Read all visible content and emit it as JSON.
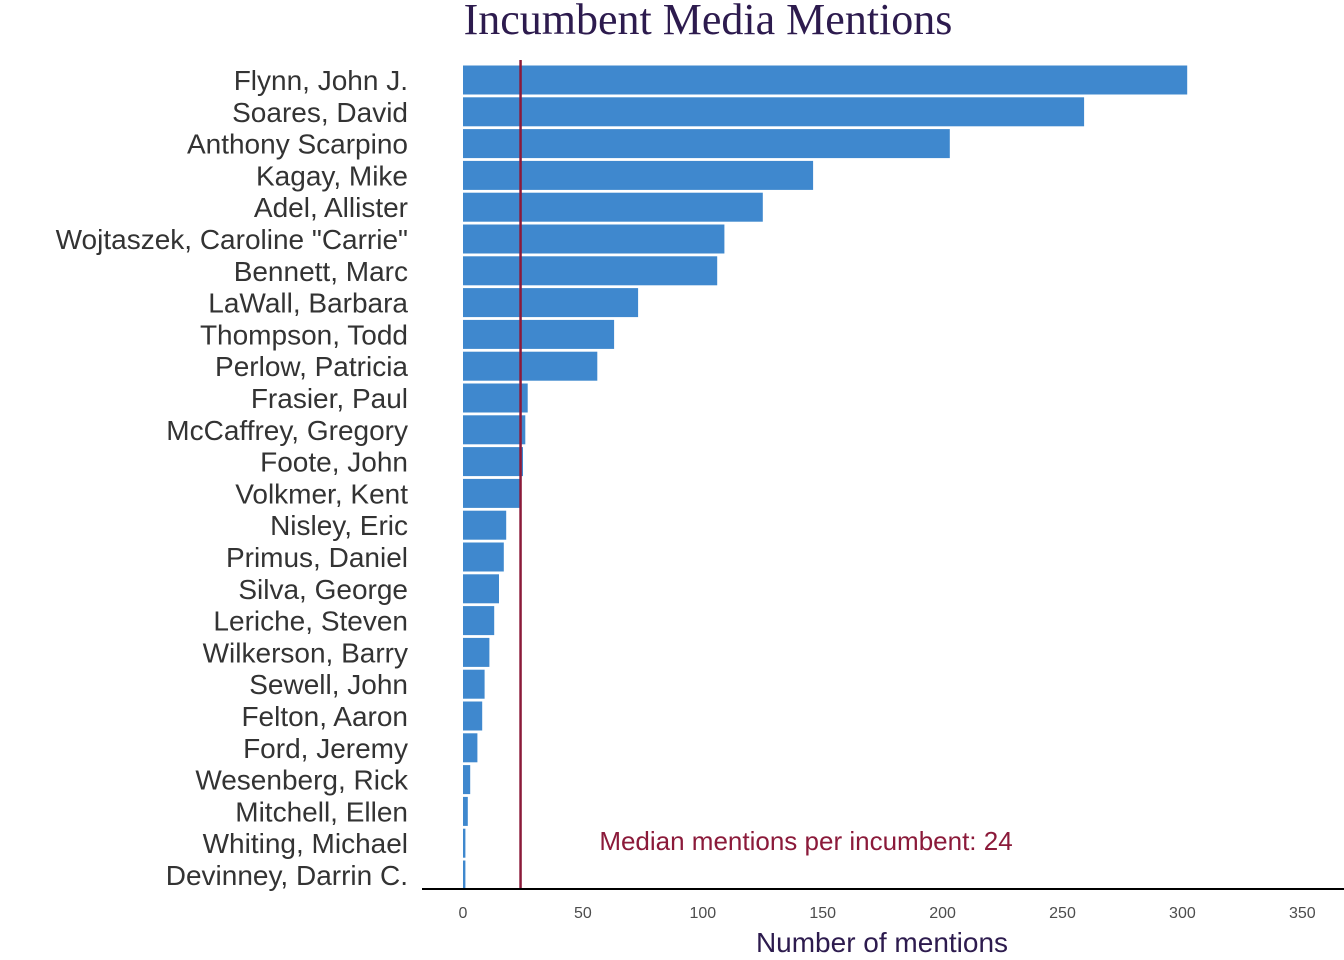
{
  "chart_data": {
    "type": "bar",
    "orientation": "horizontal",
    "title": "Incumbent Media Mentions",
    "xlabel": "Number of mentions",
    "ylabel": "",
    "xlim": [
      -17,
      366
    ],
    "xticks": [
      0,
      50,
      100,
      150,
      200,
      250,
      300,
      350
    ],
    "grid": false,
    "categories": [
      "Flynn, John J.",
      "Soares, David",
      "Anthony Scarpino",
      "Kagay, Mike",
      "Adel, Allister",
      "Wojtaszek, Caroline \"Carrie\"",
      "Bennett, Marc",
      "LaWall, Barbara",
      "Thompson, Todd",
      "Perlow, Patricia",
      "Frasier, Paul",
      "McCaffrey, Gregory",
      "Foote, John",
      "Volkmer, Kent",
      "Nisley, Eric",
      "Primus, Daniel",
      "Silva, George",
      "Leriche, Steven",
      "Wilkerson, Barry",
      "Sewell, John",
      "Felton, Aaron",
      "Ford, Jeremy",
      "Wesenberg, Rick",
      "Mitchell, Ellen",
      "Whiting, Michael",
      "Devinney, Darrin C."
    ],
    "values": [
      302,
      259,
      203,
      146,
      125,
      109,
      106,
      73,
      63,
      56,
      27,
      26,
      25,
      24,
      18,
      17,
      15,
      13,
      11,
      9,
      8,
      6,
      3,
      2,
      1,
      1
    ],
    "median_line": {
      "value": 24,
      "label": "Median mentions per incumbent: 24"
    },
    "colors": {
      "bar": "#3f88ce",
      "median": "#8b1a3a",
      "title": "#2d1b4e",
      "axis": "#000000"
    }
  }
}
